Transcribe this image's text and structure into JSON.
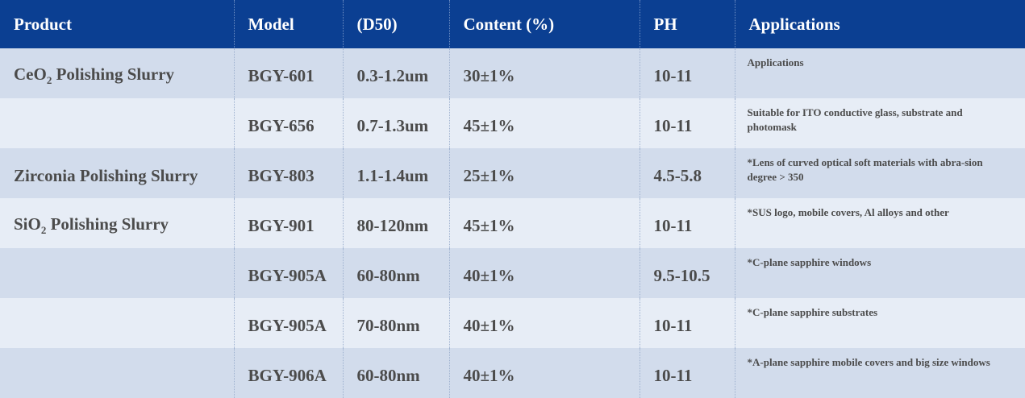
{
  "table": {
    "header": [
      "Product",
      "Model",
      "(D50)",
      "Content (%)",
      "PH",
      "Applications"
    ],
    "rows": [
      {
        "product": [
          "CeO",
          "2",
          " Polishing Slurry"
        ],
        "model": "BGY-601",
        "d50": "0.3-1.2um",
        "content": "30±1%",
        "ph": "10-11",
        "applications": "Applications"
      },
      {
        "model": "BGY-656",
        "d50": "0.7-1.3um",
        "content": "45±1%",
        "ph": "10-11",
        "applications": "Suitable for ITO conductive glass, substrate and photomask"
      },
      {
        "product": [
          "Zirconia Polishing Slurry"
        ],
        "model": "BGY-803",
        "d50": "1.1-1.4um",
        "content": "25±1%",
        "ph": "4.5-5.8",
        "applications": "*Lens of curved optical soft materials with abra-sion degree > 350"
      },
      {
        "product": [
          "SiO",
          "2",
          " Polishing Slurry"
        ],
        "model": "BGY-901",
        "d50": "80-120nm",
        "content": "45±1%",
        "ph": "10-11",
        "applications": "*SUS logo, mobile covers, Al alloys and other"
      },
      {
        "model": "BGY-905A",
        "d50": "60-80nm",
        "content": "40±1%",
        "ph": "9.5-10.5",
        "applications": "*C-plane sapphire windows"
      },
      {
        "model": "BGY-905A",
        "d50": "70-80nm",
        "content": "40±1%",
        "ph": "10-11",
        "applications": "*C-plane sapphire substrates"
      },
      {
        "model": "BGY-906A",
        "d50": "60-80nm",
        "content": "40±1%",
        "ph": "10-11",
        "applications": "*A-plane sapphire mobile covers and big size windows"
      }
    ]
  }
}
